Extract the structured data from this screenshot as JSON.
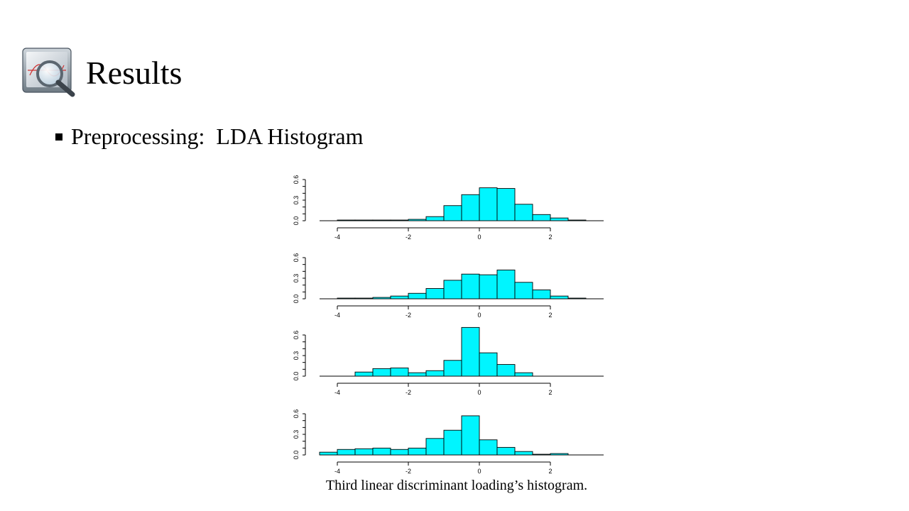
{
  "slide": {
    "title": "Results",
    "bullet": "Preprocessing:  LDA Histogram",
    "caption": "Third linear discriminant loading’s histogram.",
    "icon": "magnifier-over-monitor-icon"
  },
  "colors": {
    "bar_fill": "#00F5FF",
    "bar_stroke": "#000000",
    "axis": "#000000"
  },
  "chart_data": [
    {
      "type": "bar",
      "bin_edges": [
        -4.5,
        -4,
        -3.5,
        -3,
        -2.5,
        -2,
        -1.5,
        -1,
        -0.5,
        0,
        0.5,
        1,
        1.5,
        2,
        2.5,
        3
      ],
      "values": [
        0,
        0.01,
        0.01,
        0.01,
        0.01,
        0.02,
        0.06,
        0.22,
        0.38,
        0.48,
        0.47,
        0.24,
        0.09,
        0.04,
        0.01
      ],
      "xticks": [
        "-4",
        "-2",
        "0",
        "2"
      ],
      "yticks": [
        "0.0",
        "0.3",
        "0.6"
      ],
      "xlim": [
        -4.5,
        3.5
      ],
      "ylim": [
        0,
        0.6
      ]
    },
    {
      "type": "bar",
      "bin_edges": [
        -4.5,
        -4,
        -3.5,
        -3,
        -2.5,
        -2,
        -1.5,
        -1,
        -0.5,
        0,
        0.5,
        1,
        1.5,
        2,
        2.5,
        3
      ],
      "values": [
        0,
        0.01,
        0.01,
        0.02,
        0.04,
        0.08,
        0.15,
        0.27,
        0.36,
        0.35,
        0.42,
        0.24,
        0.13,
        0.04,
        0.01
      ],
      "xticks": [
        "-4",
        "-2",
        "0",
        "2"
      ],
      "yticks": [
        "0.0",
        "0.3",
        "0.6"
      ],
      "xlim": [
        -4.5,
        3.5
      ],
      "ylim": [
        0,
        0.6
      ]
    },
    {
      "type": "bar",
      "bin_edges": [
        -3.5,
        -3,
        -2.5,
        -2,
        -1.5,
        -1,
        -0.5,
        0,
        0.5,
        1,
        1.5
      ],
      "values": [
        0.06,
        0.11,
        0.12,
        0.05,
        0.08,
        0.23,
        0.71,
        0.34,
        0.17,
        0.05
      ],
      "xticks": [
        "-4",
        "-2",
        "0",
        "2"
      ],
      "yticks": [
        "0.0",
        "0.3",
        "0.6"
      ],
      "xlim": [
        -4.5,
        3.5
      ],
      "ylim": [
        0,
        0.6
      ]
    },
    {
      "type": "bar",
      "bin_edges": [
        -4.5,
        -4,
        -3.5,
        -3,
        -2.5,
        -2,
        -1.5,
        -1,
        -0.5,
        0,
        0.5,
        1,
        1.5,
        2,
        2.5,
        3
      ],
      "values": [
        0.04,
        0.08,
        0.09,
        0.1,
        0.08,
        0.1,
        0.24,
        0.36,
        0.57,
        0.22,
        0.11,
        0.05,
        0.01,
        0.02,
        0
      ],
      "xticks": [
        "-4",
        "-2",
        "0",
        "2"
      ],
      "yticks": [
        "0.0",
        "0.3",
        "0.6"
      ],
      "xlim": [
        -4.5,
        3.5
      ],
      "ylim": [
        0,
        0.6
      ]
    }
  ]
}
